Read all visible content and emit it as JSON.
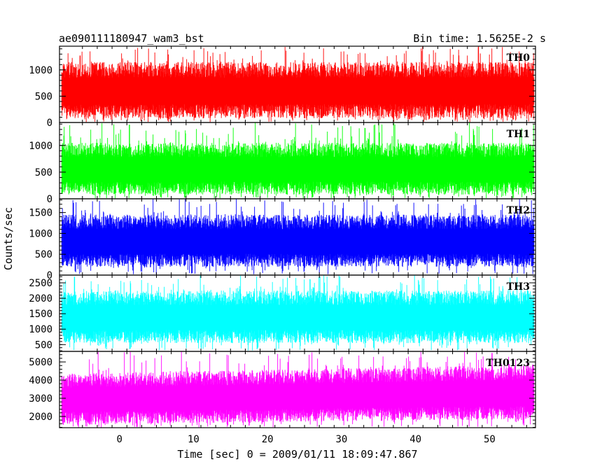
{
  "chart_data": {
    "type": "line",
    "title": "ae090111180947_wam3_bst",
    "bin_time_label": "Bin time: 1.5625E-2 s",
    "xlabel": "Time [sec] 0 = 2009/01/11 18:09:47.867",
    "ylabel": "Counts/sec",
    "xlim": [
      -8.1,
      56.2
    ],
    "x_range_data": [
      -7.8,
      56.0
    ],
    "x_ticks": [
      0,
      10,
      20,
      30,
      40,
      50
    ],
    "x_tick_labels": [
      "0",
      "10",
      "20",
      "30",
      "40",
      "50"
    ],
    "grid": false,
    "legend": "none",
    "panels": [
      {
        "name": "TH0",
        "color": "#ff0000",
        "ylim": [
          0,
          1450
        ],
        "y_ticks": [
          0,
          500,
          1000
        ],
        "y_tick_labels": [
          "0",
          "500",
          "1000"
        ],
        "typical_low": 80,
        "typical_high": 1150,
        "spike_max": 1450,
        "trend": "flat"
      },
      {
        "name": "TH1",
        "color": "#00ff00",
        "ylim": [
          0,
          1430
        ],
        "y_ticks": [
          0,
          500,
          1000
        ],
        "y_tick_labels": [
          "0",
          "500",
          "1000"
        ],
        "typical_low": 80,
        "typical_high": 1050,
        "spike_max": 1430,
        "trend": "flat"
      },
      {
        "name": "TH2",
        "color": "#0000ff",
        "ylim": [
          0,
          1830
        ],
        "y_ticks": [
          0,
          500,
          1000,
          1500
        ],
        "y_tick_labels": [
          "0",
          "500",
          "1000",
          "1500"
        ],
        "typical_low": 200,
        "typical_high": 1450,
        "spike_max": 1830,
        "trend": "flat"
      },
      {
        "name": "TH3",
        "color": "#00ffff",
        "ylim": [
          280,
          2750
        ],
        "y_ticks": [
          500,
          1000,
          1500,
          2000,
          2500
        ],
        "y_tick_labels": [
          "500",
          "1000",
          "1500",
          "2000",
          "2500"
        ],
        "typical_low": 550,
        "typical_high": 2250,
        "spike_max": 2750,
        "trend": "flat"
      },
      {
        "name": "TH0123",
        "color": "#ff00ff",
        "ylim": [
          1380,
          5580
        ],
        "y_ticks": [
          2000,
          3000,
          4000,
          5000
        ],
        "y_tick_labels": [
          "2000",
          "3000",
          "4000",
          "5000"
        ],
        "typical_low": 1700,
        "typical_high": 4600,
        "spike_max": 5580,
        "trend": "slight rise"
      }
    ]
  }
}
